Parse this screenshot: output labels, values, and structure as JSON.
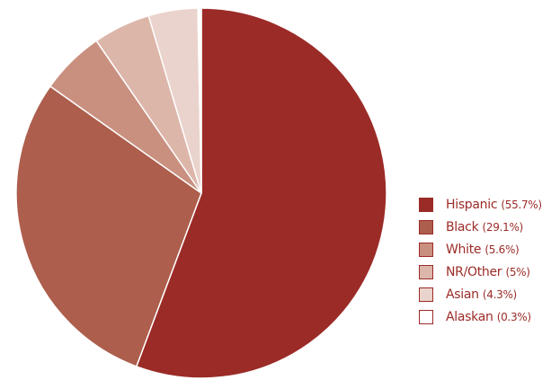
{
  "chart_data": {
    "type": "pie",
    "legend_position": "right",
    "slices": [
      {
        "label": "Hispanic",
        "value": 55.7,
        "display_value": "(55.7%)",
        "color": "#9b2b27"
      },
      {
        "label": "Black",
        "value": 29.1,
        "display_value": "(29.1%)",
        "color": "#ad5e4c"
      },
      {
        "label": "White",
        "value": 5.6,
        "display_value": "(5.6%)",
        "color": "#c99080"
      },
      {
        "label": "NR/Other",
        "value": 5,
        "display_value": "(5%)",
        "color": "#ddb6aa"
      },
      {
        "label": "Asian",
        "value": 4.3,
        "display_value": "(4.3%)",
        "color": "#ead3cc"
      },
      {
        "label": "Alaskan",
        "value": 0.3,
        "display_value": "(0.3%)",
        "color": "#ffffff"
      }
    ]
  }
}
